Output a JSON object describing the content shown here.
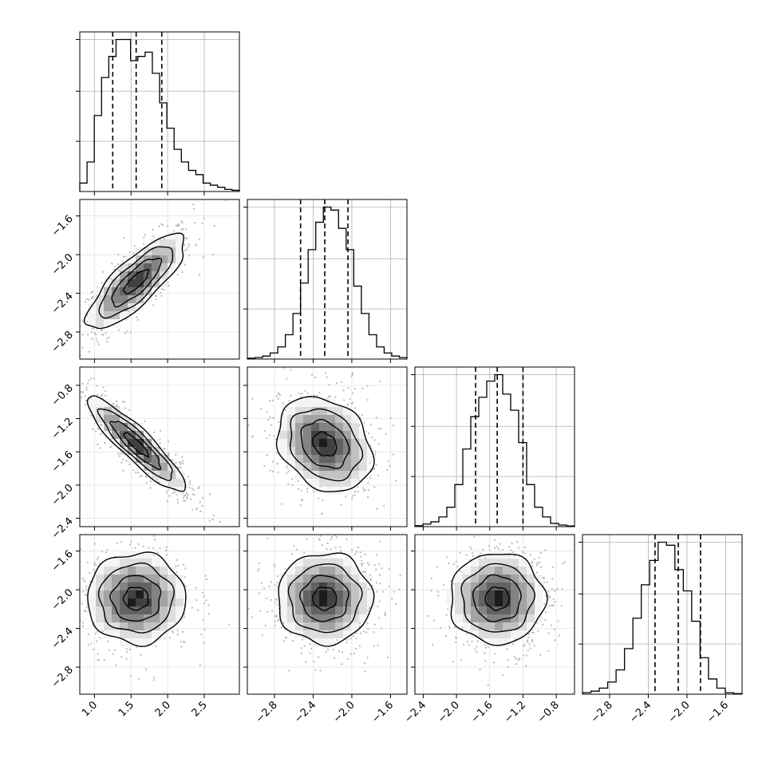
{
  "chart_data": {
    "type": "corner",
    "description_type": "corner plot: 1D marginal histograms with 16/50/84 percentile lines on the diagonal, 2D density histograms with contours below",
    "parameters": [
      {
        "index": 0,
        "range": [
          0.8,
          2.98
        ],
        "ticks": [
          "1.0",
          "1.5",
          "2.0",
          "2.5"
        ],
        "tick_values": [
          1.0,
          1.5,
          2.0,
          2.5
        ],
        "quantiles": [
          1.25,
          1.57,
          1.92
        ]
      },
      {
        "index": 1,
        "range": [
          -3.08,
          -1.43
        ],
        "ticks": [
          "−2.8",
          "−2.4",
          "−2.0",
          "−1.6"
        ],
        "tick_values": [
          -2.8,
          -2.4,
          -2.0,
          -1.6
        ],
        "quantiles": [
          -2.53,
          -2.28,
          -2.04
        ]
      },
      {
        "index": 2,
        "range": [
          -2.5,
          -0.58
        ],
        "ticks": [
          "−2.4",
          "−2.0",
          "−1.6",
          "−1.2",
          "−0.8"
        ],
        "tick_values": [
          -2.4,
          -2.0,
          -1.6,
          -1.2,
          -0.8
        ],
        "quantiles": [
          -1.77,
          -1.51,
          -1.2
        ]
      },
      {
        "index": 3,
        "range": [
          -3.08,
          -1.43
        ],
        "ticks": [
          "−2.8",
          "−2.4",
          "−2.0",
          "−1.6"
        ],
        "tick_values": [
          -2.8,
          -2.4,
          -2.0,
          -1.6
        ],
        "quantiles": [
          -2.33,
          -2.09,
          -1.86
        ]
      }
    ],
    "marginals": [
      {
        "param": 0,
        "bins": [
          0.8,
          2.98
        ],
        "counts": [
          2,
          7,
          18,
          27,
          32,
          36,
          36,
          31,
          32,
          33,
          28,
          21,
          15,
          10,
          7,
          5,
          4,
          2,
          1.5,
          1,
          0.5,
          0.3
        ]
      },
      {
        "param": 1,
        "bins": [
          -3.08,
          -1.43
        ],
        "counts": [
          0.3,
          0.5,
          1,
          2,
          4,
          8,
          15,
          25,
          36,
          45,
          50,
          49,
          43,
          36,
          24,
          15,
          8,
          4,
          2,
          1,
          0.5
        ]
      },
      {
        "param": 2,
        "bins": [
          -2.5,
          -0.58
        ],
        "counts": [
          0.3,
          0.8,
          1.5,
          3,
          6,
          13,
          24,
          34,
          40,
          45,
          47,
          41,
          36,
          26,
          13,
          6,
          3,
          1,
          0.5,
          0.2
        ]
      },
      {
        "param": 3,
        "bins": [
          -3.08,
          -1.43
        ],
        "counts": [
          0.5,
          1,
          2,
          4,
          8,
          15,
          25,
          36,
          44,
          50,
          49,
          41,
          34,
          24,
          12,
          5,
          2,
          0.5,
          0.2
        ]
      }
    ],
    "pairs": [
      {
        "x_param": 0,
        "y_param": 1,
        "correlation": 0.8
      },
      {
        "x_param": 0,
        "y_param": 2,
        "correlation": -0.9
      },
      {
        "x_param": 1,
        "y_param": 2,
        "correlation": -0.25
      },
      {
        "x_param": 0,
        "y_param": 3,
        "correlation": 0.0
      },
      {
        "x_param": 1,
        "y_param": 3,
        "correlation": 0.0
      },
      {
        "x_param": 2,
        "y_param": 3,
        "correlation": 0.0
      }
    ],
    "contour_levels_sigma": [
      0.5,
      1.0,
      1.5,
      2.0
    ],
    "grid": true,
    "colors": {
      "hist_line": "#000000",
      "quantile_line": "#000000",
      "grid": "#b0b0b0",
      "density_max": "#000000",
      "scatter": "#b8b8b8"
    }
  }
}
